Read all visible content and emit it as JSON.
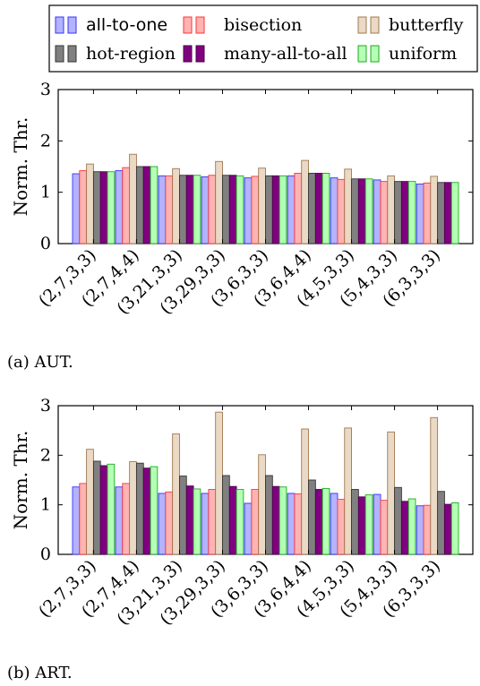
{
  "legend": [
    {
      "label": "all-to-one",
      "fill": "#b3b3ff",
      "stroke": "#3333ff"
    },
    {
      "label": "bisection",
      "fill": "#ffb3b3",
      "stroke": "#ff3333"
    },
    {
      "label": "butterfly",
      "fill": "#ead9c4",
      "stroke": "#a07850"
    },
    {
      "label": "hot-region",
      "fill": "#808080",
      "stroke": "#333333"
    },
    {
      "label": "many-all-to-all",
      "fill": "#800080",
      "stroke": "#4d004d"
    },
    {
      "label": "uniform",
      "fill": "#b3ffb3",
      "stroke": "#22aa22"
    }
  ],
  "chart_data": [
    {
      "type": "bar",
      "caption": "(a) AUT.",
      "ylabel": "Norm. Thr.",
      "ylim": [
        0,
        3
      ],
      "yticks": [
        "0",
        "1",
        "2",
        "3"
      ],
      "categories": [
        "(2,7,3,3)",
        "(2,7,4,4)",
        "(3,21,3,3)",
        "(3,29,3,3)",
        "(3,6,3,3)",
        "(3,6,4,4)",
        "(4,5,3,3)",
        "(5,4,3,3)",
        "(6,3,3,3)"
      ],
      "series": [
        {
          "name": "all-to-one",
          "values": [
            1.36,
            1.42,
            1.32,
            1.3,
            1.28,
            1.32,
            1.28,
            1.24,
            1.16
          ]
        },
        {
          "name": "bisection",
          "values": [
            1.42,
            1.48,
            1.32,
            1.33,
            1.31,
            1.37,
            1.25,
            1.21,
            1.18
          ]
        },
        {
          "name": "butterfly",
          "values": [
            1.55,
            1.74,
            1.46,
            1.6,
            1.47,
            1.62,
            1.45,
            1.32,
            1.31
          ]
        },
        {
          "name": "hot-region",
          "values": [
            1.4,
            1.5,
            1.33,
            1.33,
            1.32,
            1.37,
            1.26,
            1.21,
            1.19
          ]
        },
        {
          "name": "many-all-to-all",
          "values": [
            1.4,
            1.5,
            1.33,
            1.33,
            1.32,
            1.37,
            1.26,
            1.21,
            1.19
          ]
        },
        {
          "name": "uniform",
          "values": [
            1.4,
            1.5,
            1.33,
            1.32,
            1.32,
            1.37,
            1.26,
            1.21,
            1.19
          ]
        }
      ]
    },
    {
      "type": "bar",
      "caption": "(b) ART.",
      "ylabel": "Norm. Thr.",
      "ylim": [
        0,
        3
      ],
      "yticks": [
        "0",
        "1",
        "2",
        "3"
      ],
      "categories": [
        "(2,7,3,3)",
        "(2,7,4,4)",
        "(3,21,3,3)",
        "(3,29,3,3)",
        "(3,6,3,3)",
        "(3,6,4,4)",
        "(4,5,3,3)",
        "(5,4,3,3)",
        "(6,3,3,3)"
      ],
      "series": [
        {
          "name": "all-to-one",
          "values": [
            1.36,
            1.36,
            1.23,
            1.23,
            1.03,
            1.23,
            1.23,
            1.21,
            0.98
          ]
        },
        {
          "name": "bisection",
          "values": [
            1.43,
            1.43,
            1.26,
            1.31,
            1.31,
            1.22,
            1.11,
            1.09,
            0.99
          ]
        },
        {
          "name": "butterfly",
          "values": [
            2.12,
            1.87,
            2.43,
            2.87,
            2.01,
            2.53,
            2.55,
            2.47,
            2.76
          ]
        },
        {
          "name": "hot-region",
          "values": [
            1.88,
            1.84,
            1.58,
            1.59,
            1.59,
            1.5,
            1.31,
            1.35,
            1.27
          ]
        },
        {
          "name": "many-all-to-all",
          "values": [
            1.79,
            1.74,
            1.38,
            1.37,
            1.37,
            1.31,
            1.16,
            1.07,
            1.01
          ]
        },
        {
          "name": "uniform",
          "values": [
            1.82,
            1.77,
            1.32,
            1.31,
            1.36,
            1.33,
            1.2,
            1.12,
            1.04
          ]
        }
      ]
    }
  ]
}
